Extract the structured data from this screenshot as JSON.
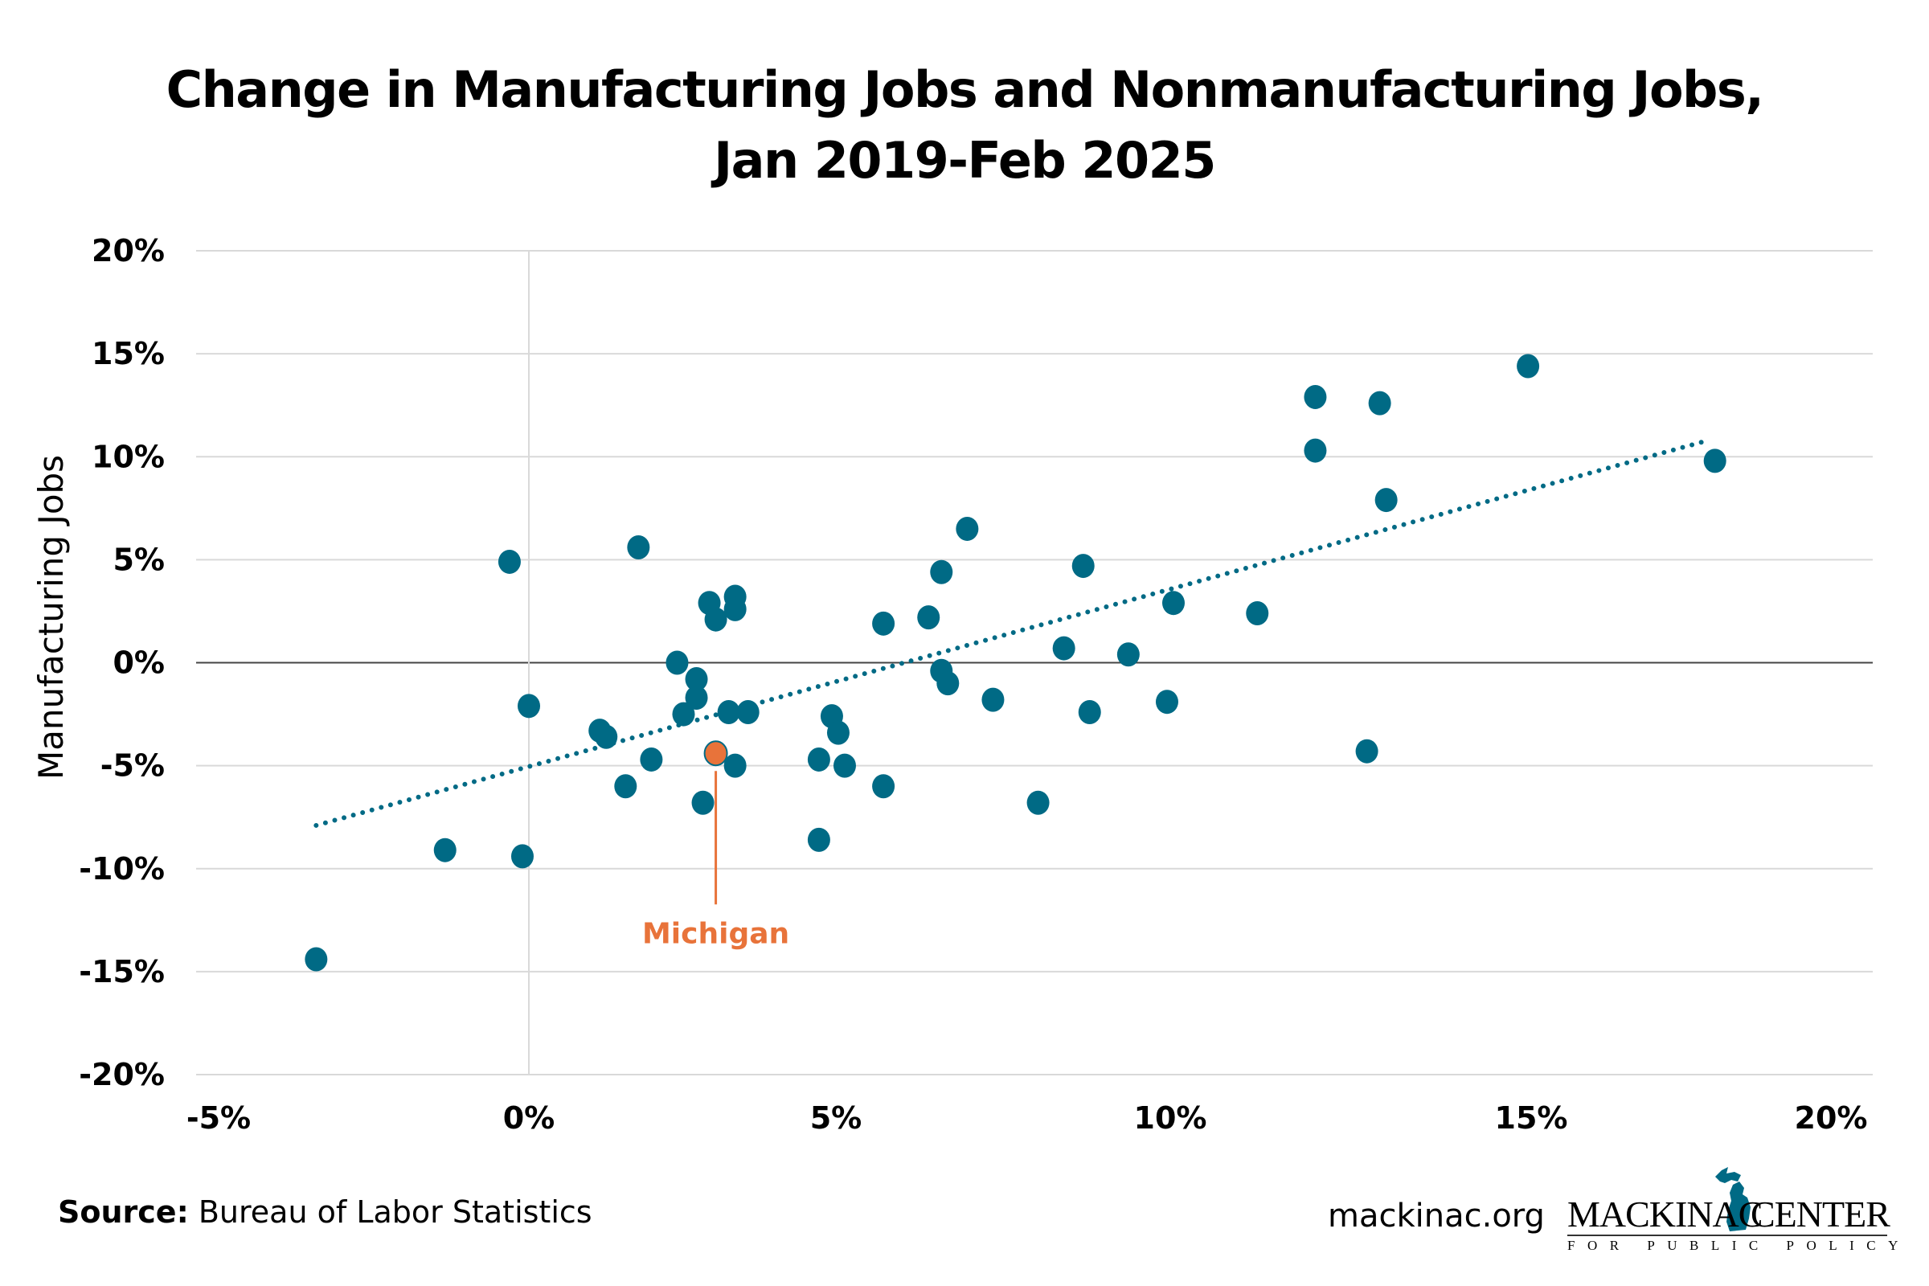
{
  "title_line1": "Change in Manufacturing Jobs and Nonmanufacturing Jobs,",
  "title_line2": "Jan 2019-Feb 2025",
  "footer": {
    "source_label": "Source:",
    "source_text": "Bureau of Labor Statistics",
    "site": "mackinac.org",
    "logo_left": "MACKINAC",
    "logo_right": "CENTER",
    "logo_sub": "FOR PUBLIC POLICY"
  },
  "colors": {
    "point": "#006a85",
    "highlight": "#e8733a",
    "trend": "#006a85",
    "grid": "#d9d9d9",
    "zero_line": "#444444"
  },
  "chart_data": {
    "type": "scatter",
    "title": "Change in Manufacturing Jobs and Nonmanufacturing Jobs, Jan 2019-Feb 2025",
    "xlabel": "",
    "ylabel": "Manufacturing Jobs",
    "xlim": [
      -5,
      20
    ],
    "ylim": [
      -20,
      20
    ],
    "x_ticks": [
      -5,
      0,
      5,
      10,
      15,
      20
    ],
    "y_ticks": [
      20,
      15,
      10,
      5,
      0,
      -5,
      -10,
      -15,
      -20
    ],
    "x_tick_labels": [
      "-5%",
      "0%",
      "5%",
      "10%",
      "15%",
      "20%"
    ],
    "y_tick_labels": [
      "20%",
      "15%",
      "10%",
      "5%",
      "0%",
      "-5%",
      "-10%",
      "-15%",
      "-20%"
    ],
    "grid": "horizontal",
    "trendline": {
      "style": "dotted",
      "x": [
        -3.3,
        18.3
      ],
      "y": [
        -7.9,
        10.8
      ]
    },
    "highlight": {
      "label": "Michigan",
      "x": 2.9,
      "y": -4.4
    },
    "points": [
      {
        "x": -3.3,
        "y": -14.4
      },
      {
        "x": -1.3,
        "y": -9.1
      },
      {
        "x": -0.3,
        "y": 4.9
      },
      {
        "x": -0.1,
        "y": -9.4
      },
      {
        "x": 0.0,
        "y": -2.1
      },
      {
        "x": 1.1,
        "y": -3.3
      },
      {
        "x": 1.2,
        "y": -3.6
      },
      {
        "x": 1.5,
        "y": -6.0
      },
      {
        "x": 1.7,
        "y": 5.6
      },
      {
        "x": 1.9,
        "y": -4.7
      },
      {
        "x": 2.3,
        "y": 0.0
      },
      {
        "x": 2.4,
        "y": -2.5
      },
      {
        "x": 2.6,
        "y": -0.8
      },
      {
        "x": 2.6,
        "y": -1.7
      },
      {
        "x": 2.7,
        "y": -6.8
      },
      {
        "x": 2.8,
        "y": 2.9
      },
      {
        "x": 2.9,
        "y": 2.1
      },
      {
        "x": 3.1,
        "y": -2.4
      },
      {
        "x": 3.2,
        "y": -5.0
      },
      {
        "x": 3.2,
        "y": 3.2
      },
      {
        "x": 3.2,
        "y": 2.6
      },
      {
        "x": 3.4,
        "y": -2.4
      },
      {
        "x": 4.5,
        "y": -4.7
      },
      {
        "x": 4.5,
        "y": -8.6
      },
      {
        "x": 4.7,
        "y": -2.6
      },
      {
        "x": 4.8,
        "y": -3.4
      },
      {
        "x": 4.9,
        "y": -5.0
      },
      {
        "x": 5.5,
        "y": -6.0
      },
      {
        "x": 5.5,
        "y": 1.9
      },
      {
        "x": 6.2,
        "y": 2.2
      },
      {
        "x": 6.4,
        "y": 4.4
      },
      {
        "x": 6.4,
        "y": -0.4
      },
      {
        "x": 6.5,
        "y": -1.0
      },
      {
        "x": 6.8,
        "y": 6.5
      },
      {
        "x": 7.2,
        "y": -1.8
      },
      {
        "x": 7.9,
        "y": -6.8
      },
      {
        "x": 8.3,
        "y": 0.7
      },
      {
        "x": 8.6,
        "y": 4.7
      },
      {
        "x": 8.7,
        "y": -2.4
      },
      {
        "x": 9.3,
        "y": 0.4
      },
      {
        "x": 9.9,
        "y": -1.9
      },
      {
        "x": 10.0,
        "y": 2.9
      },
      {
        "x": 11.3,
        "y": 2.4
      },
      {
        "x": 12.2,
        "y": 12.9
      },
      {
        "x": 12.2,
        "y": 10.3
      },
      {
        "x": 13.0,
        "y": -4.3
      },
      {
        "x": 13.2,
        "y": 12.6
      },
      {
        "x": 13.3,
        "y": 7.9
      },
      {
        "x": 15.5,
        "y": 14.4
      },
      {
        "x": 18.4,
        "y": 9.8
      }
    ]
  }
}
